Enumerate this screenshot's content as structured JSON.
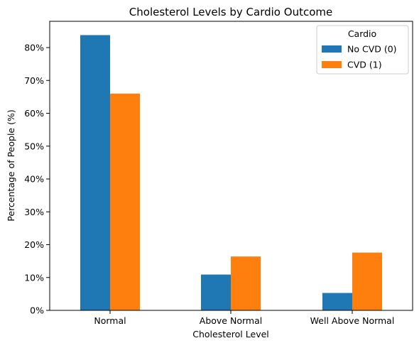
{
  "chart_data": {
    "type": "bar",
    "title": "Cholesterol Levels by Cardio Outcome",
    "xlabel": "Cholesterol Level",
    "ylabel": "Percentage of People (%)",
    "categories": [
      "Normal",
      "Above Normal",
      "Well Above Normal"
    ],
    "series": [
      {
        "name": "No CVD (0)",
        "color": "#1f77b4",
        "values": [
          83.8,
          10.9,
          5.3
        ]
      },
      {
        "name": "CVD (1)",
        "color": "#ff7f0e",
        "values": [
          66.0,
          16.4,
          17.6
        ]
      }
    ],
    "ylim": [
      0,
      88
    ],
    "yticks": [
      0,
      10,
      20,
      30,
      40,
      50,
      60,
      70,
      80
    ],
    "ytick_labels": [
      "0%",
      "10%",
      "20%",
      "30%",
      "40%",
      "50%",
      "60%",
      "70%",
      "80%"
    ],
    "grid": false,
    "legend": {
      "title": "Cardio",
      "placement": "top-right"
    }
  }
}
